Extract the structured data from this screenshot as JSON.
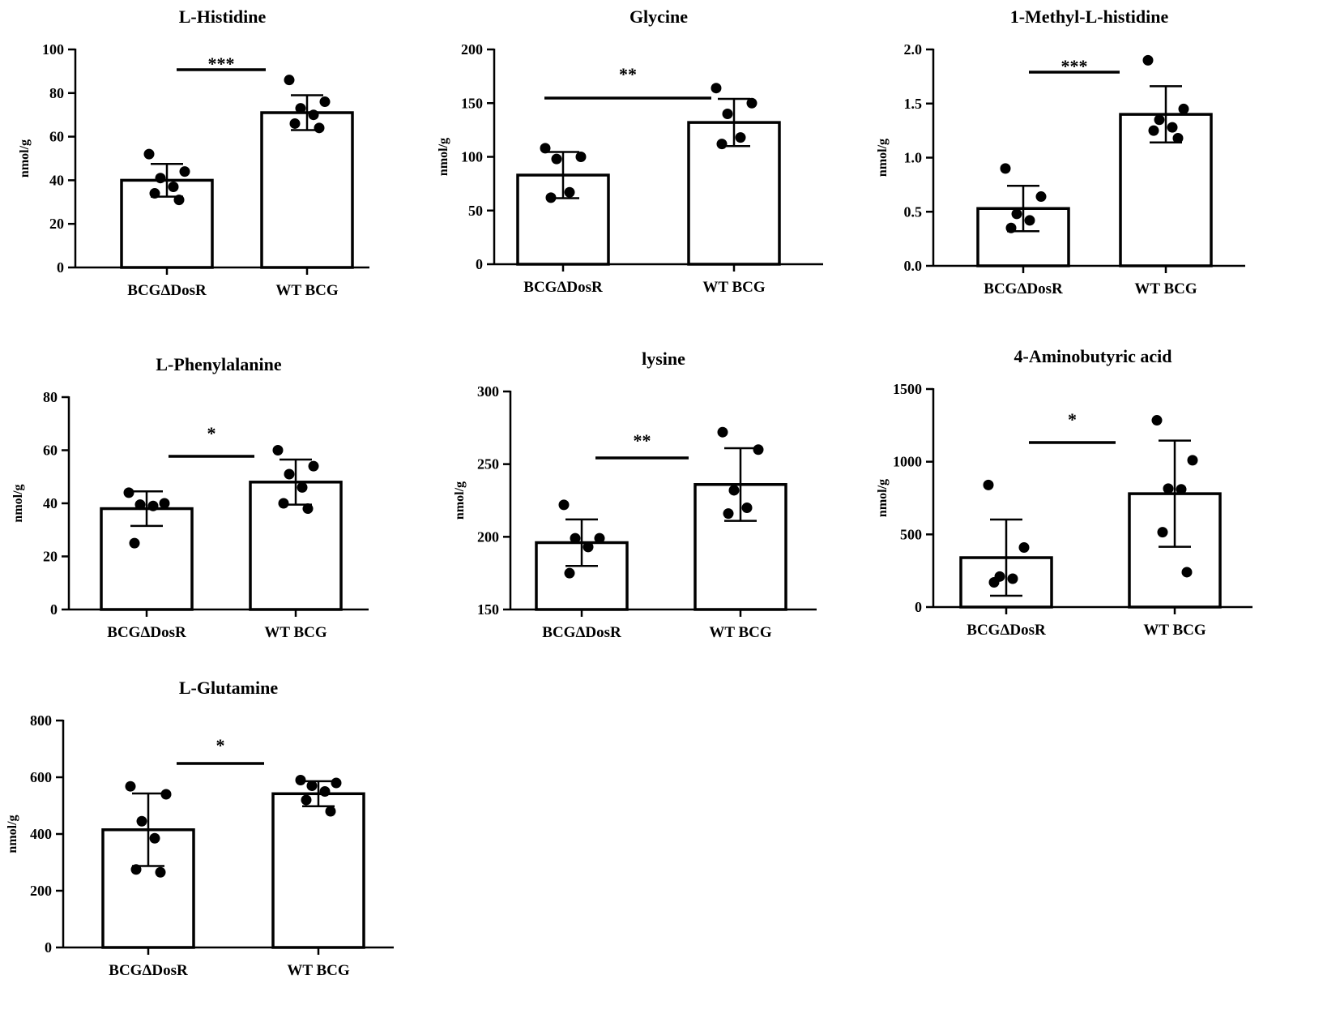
{
  "chart_data": [
    {
      "type": "bar",
      "title": "L-Histidine",
      "ylabel": "nmol/g",
      "xlabel": "",
      "categories": [
        "BCGΔDosR",
        "WT BCG"
      ],
      "ylim": [
        0,
        100
      ],
      "yticks": [
        0,
        20,
        40,
        60,
        80,
        100
      ],
      "means": [
        40,
        71
      ],
      "sd": [
        7.5,
        8
      ],
      "points": [
        [
          52,
          44,
          41,
          37,
          34,
          31
        ],
        [
          86,
          76,
          73,
          70,
          66,
          64
        ]
      ],
      "significance": "***"
    },
    {
      "type": "bar",
      "title": "Glycine",
      "ylabel": "nmol/g",
      "xlabel": "",
      "categories": [
        "BCGΔDosR",
        "WT BCG"
      ],
      "ylim": [
        0,
        200
      ],
      "yticks": [
        0,
        50,
        100,
        150,
        200
      ],
      "means": [
        83,
        132
      ],
      "sd": [
        21.5,
        22
      ],
      "points": [
        [
          108,
          100,
          98,
          67,
          62
        ],
        [
          164,
          150,
          140,
          118,
          112
        ]
      ],
      "significance": "**"
    },
    {
      "type": "bar",
      "title": "1-Methyl-L-histidine",
      "ylabel": "nmol/g",
      "xlabel": "",
      "categories": [
        "BCGΔDosR",
        "WT BCG"
      ],
      "ylim": [
        0,
        2.0
      ],
      "yticks": [
        0.0,
        0.5,
        1.0,
        1.5,
        2.0
      ],
      "tick_decimals": 1,
      "means": [
        0.53,
        1.4
      ],
      "sd": [
        0.21,
        0.26
      ],
      "points": [
        [
          0.9,
          0.64,
          0.48,
          0.42,
          0.35
        ],
        [
          1.9,
          1.45,
          1.35,
          1.28,
          1.25,
          1.18
        ]
      ],
      "significance": "***"
    },
    {
      "type": "bar",
      "title": "L-Phenylalanine",
      "ylabel": "nmol/g",
      "xlabel": "",
      "categories": [
        "BCGΔDosR",
        "WT BCG"
      ],
      "ylim": [
        0,
        80
      ],
      "yticks": [
        0,
        20,
        40,
        60,
        80
      ],
      "means": [
        38,
        48
      ],
      "sd": [
        6.5,
        8.5
      ],
      "points": [
        [
          44,
          40,
          39.5,
          39,
          25
        ],
        [
          60,
          54,
          51,
          46,
          40,
          38
        ]
      ],
      "significance": "*"
    },
    {
      "type": "bar",
      "title": "lysine",
      "ylabel": "nmol/g",
      "xlabel": "",
      "categories": [
        "BCGΔDosR",
        "WT BCG"
      ],
      "ylim": [
        150,
        300
      ],
      "yticks": [
        150,
        200,
        250,
        300
      ],
      "means": [
        196,
        236
      ],
      "sd": [
        16,
        25
      ],
      "points": [
        [
          222,
          199,
          199,
          193,
          175
        ],
        [
          272,
          260,
          232,
          220,
          216
        ]
      ],
      "significance": "**"
    },
    {
      "type": "bar",
      "title": "4-Aminobutyric acid",
      "ylabel": "nmol/g",
      "xlabel": "",
      "categories": [
        "BCGΔDosR",
        "WT BCG"
      ],
      "ylim": [
        0,
        1500
      ],
      "yticks": [
        0,
        500,
        1000,
        1500
      ],
      "means": [
        340,
        780
      ],
      "sd": [
        262,
        365
      ],
      "points": [
        [
          840,
          410,
          210,
          195,
          170
        ],
        [
          1285,
          1010,
          815,
          810,
          515,
          240
        ]
      ],
      "significance": "*"
    },
    {
      "type": "bar",
      "title": "L-Glutamine",
      "ylabel": "nmol/g",
      "xlabel": "",
      "categories": [
        "BCGΔDosR",
        "WT BCG"
      ],
      "ylim": [
        0,
        800
      ],
      "yticks": [
        0,
        200,
        400,
        600,
        800
      ],
      "means": [
        415,
        542
      ],
      "sd": [
        128,
        44
      ],
      "points": [
        [
          568,
          540,
          445,
          385,
          275,
          265
        ],
        [
          590,
          580,
          570,
          550,
          520,
          480
        ]
      ],
      "significance": "*"
    }
  ]
}
